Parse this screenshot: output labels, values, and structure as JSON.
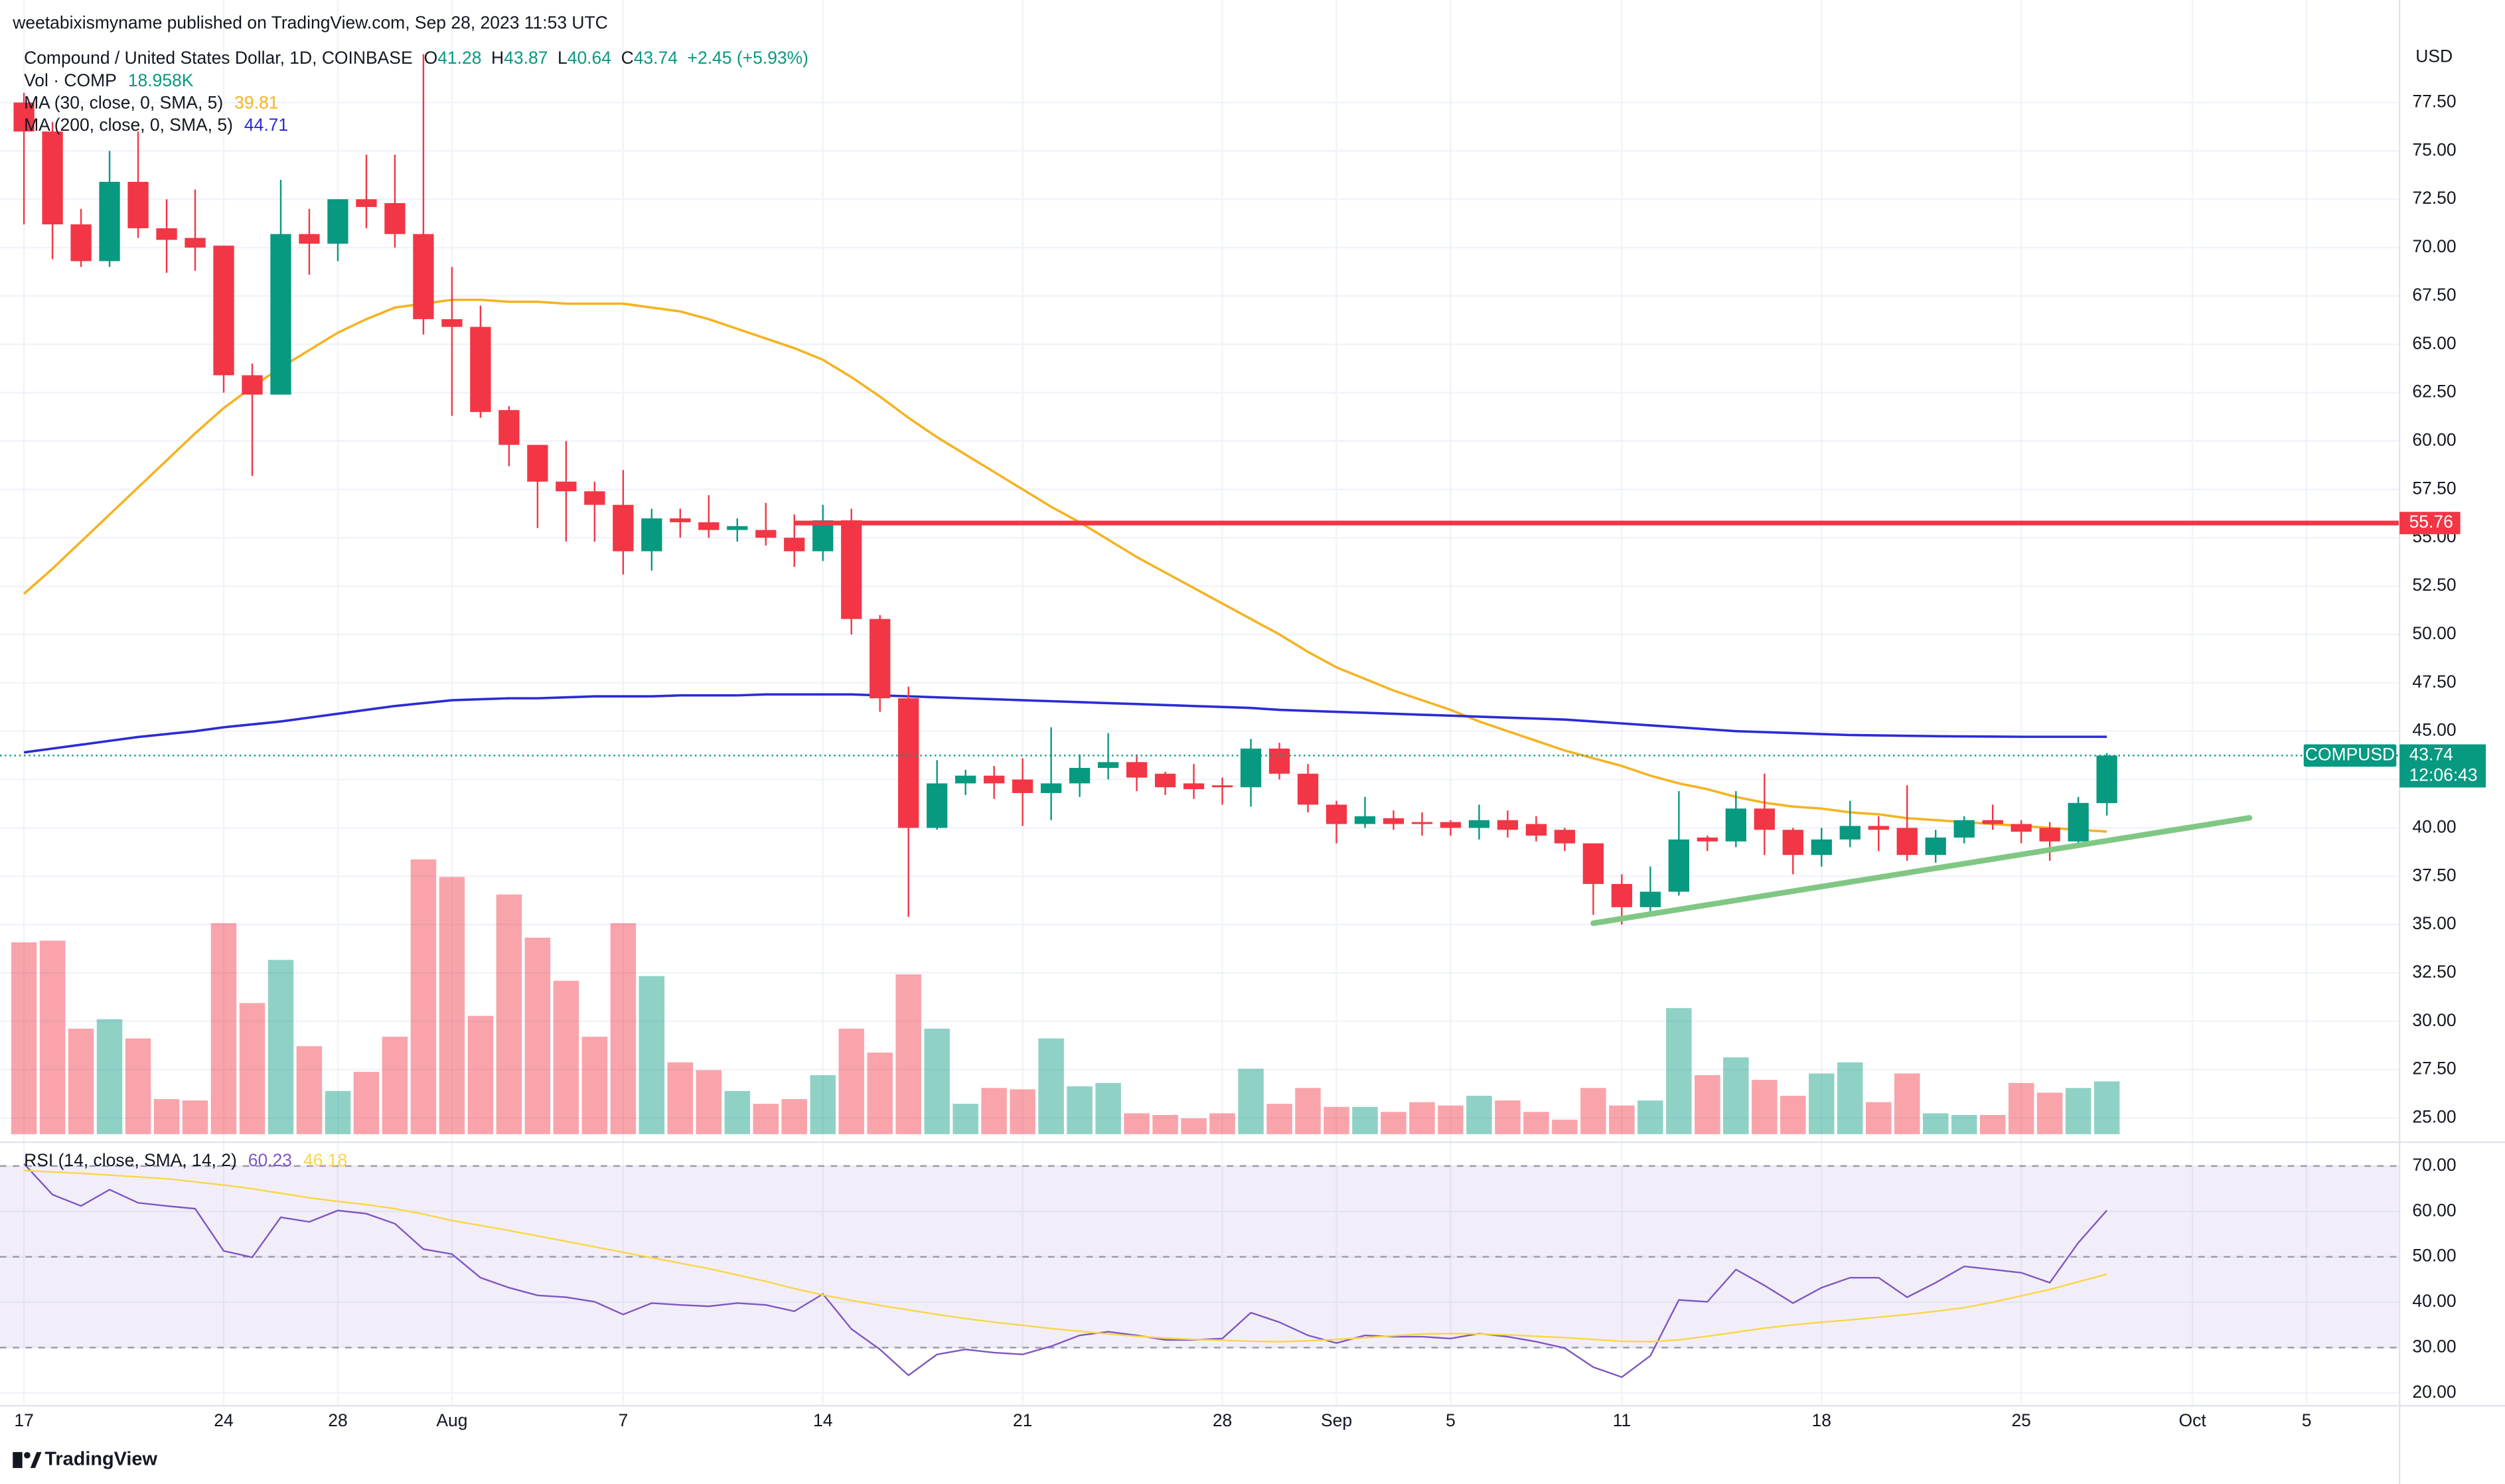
{
  "chart_data": {
    "type": "candlestick",
    "published": "weetabixismyname published on TradingView.com, Sep 28, 2023 11:53 UTC",
    "title": "Compound / United States Dollar, 1D, COINBASE",
    "ohlc_labels": [
      "O",
      "H",
      "L",
      "C"
    ],
    "change": "+2.45 (+5.93%)",
    "currency": "USD",
    "symbol": "COMPUSD",
    "countdown": "12:06:43",
    "footer": "TradingView",
    "up_color": "#089981",
    "down_color": "#f23645",
    "x": [
      "2023-07-17",
      "2023-07-18",
      "2023-07-19",
      "2023-07-20",
      "2023-07-21",
      "2023-07-22",
      "2023-07-23",
      "2023-07-24",
      "2023-07-25",
      "2023-07-26",
      "2023-07-27",
      "2023-07-28",
      "2023-07-29",
      "2023-07-30",
      "2023-07-31",
      "2023-08-01",
      "2023-08-02",
      "2023-08-03",
      "2023-08-04",
      "2023-08-05",
      "2023-08-06",
      "2023-08-07",
      "2023-08-08",
      "2023-08-09",
      "2023-08-10",
      "2023-08-11",
      "2023-08-12",
      "2023-08-13",
      "2023-08-14",
      "2023-08-15",
      "2023-08-16",
      "2023-08-17",
      "2023-08-18",
      "2023-08-19",
      "2023-08-20",
      "2023-08-21",
      "2023-08-22",
      "2023-08-23",
      "2023-08-24",
      "2023-08-25",
      "2023-08-26",
      "2023-08-27",
      "2023-08-28",
      "2023-08-29",
      "2023-08-30",
      "2023-08-31",
      "2023-09-01",
      "2023-09-02",
      "2023-09-03",
      "2023-09-04",
      "2023-09-05",
      "2023-09-06",
      "2023-09-07",
      "2023-09-08",
      "2023-09-09",
      "2023-09-10",
      "2023-09-11",
      "2023-09-12",
      "2023-09-13",
      "2023-09-14",
      "2023-09-15",
      "2023-09-16",
      "2023-09-17",
      "2023-09-18",
      "2023-09-19",
      "2023-09-20",
      "2023-09-21",
      "2023-09-22",
      "2023-09-23",
      "2023-09-24",
      "2023-09-25",
      "2023-09-26",
      "2023-09-27",
      "2023-09-28"
    ],
    "open": [
      77.5,
      76.0,
      71.2,
      69.3,
      73.4,
      71.0,
      70.5,
      70.1,
      63.4,
      62.4,
      70.7,
      70.2,
      72.5,
      72.3,
      70.7,
      66.3,
      65.9,
      61.6,
      59.8,
      57.9,
      57.4,
      56.7,
      54.3,
      56.0,
      55.8,
      55.4,
      55.4,
      55.0,
      54.3,
      55.9,
      50.8,
      46.7,
      40.0,
      42.3,
      42.7,
      42.5,
      41.8,
      42.3,
      43.1,
      43.4,
      42.8,
      42.3,
      42.2,
      42.1,
      44.1,
      42.8,
      41.2,
      40.2,
      40.5,
      40.3,
      40.3,
      40.0,
      40.4,
      40.2,
      39.9,
      39.2,
      37.1,
      35.9,
      36.7,
      39.5,
      39.3,
      41.0,
      39.9,
      38.6,
      39.4,
      40.1,
      40.0,
      38.6,
      39.5,
      40.4,
      40.2,
      40.0,
      39.3,
      41.28
    ],
    "high": [
      78.0,
      76.5,
      72.0,
      75.0,
      76.0,
      72.5,
      73.0,
      70.1,
      64.0,
      73.5,
      72.0,
      72.5,
      74.8,
      74.8,
      80.0,
      69.0,
      67.0,
      61.8,
      59.8,
      60.0,
      57.9,
      58.5,
      56.5,
      56.5,
      57.2,
      56.0,
      56.8,
      56.2,
      56.7,
      56.5,
      51.0,
      47.3,
      43.5,
      43.0,
      43.2,
      43.6,
      45.2,
      43.8,
      44.9,
      43.8,
      42.9,
      43.3,
      42.6,
      44.6,
      44.4,
      43.3,
      41.4,
      41.6,
      40.9,
      40.8,
      40.4,
      41.2,
      40.9,
      40.6,
      40.0,
      39.2,
      37.6,
      38.0,
      41.9,
      39.6,
      41.9,
      42.8,
      40.0,
      40.0,
      41.4,
      40.6,
      42.2,
      39.9,
      40.6,
      41.2,
      40.4,
      40.3,
      41.6,
      43.87
    ],
    "low": [
      71.2,
      69.4,
      69.0,
      69.0,
      70.5,
      68.7,
      68.8,
      62.5,
      58.2,
      62.4,
      68.6,
      69.3,
      71.0,
      70.0,
      65.5,
      61.3,
      61.2,
      58.7,
      55.5,
      54.8,
      54.8,
      53.1,
      53.3,
      55.0,
      55.0,
      54.8,
      54.6,
      53.5,
      53.8,
      50.0,
      46.0,
      35.4,
      39.9,
      41.7,
      41.5,
      40.1,
      40.4,
      41.6,
      42.5,
      41.9,
      41.7,
      41.5,
      41.2,
      41.1,
      42.5,
      40.8,
      39.2,
      40.0,
      39.9,
      39.6,
      39.6,
      39.4,
      39.5,
      39.3,
      38.8,
      35.5,
      35.0,
      35.6,
      36.5,
      38.8,
      39.0,
      38.6,
      37.6,
      38.0,
      39.0,
      38.8,
      38.3,
      38.2,
      39.2,
      39.9,
      39.2,
      38.3,
      39.1,
      40.64
    ],
    "close": [
      76.0,
      71.2,
      69.3,
      73.4,
      71.0,
      70.4,
      70.0,
      63.4,
      62.4,
      70.7,
      70.2,
      72.5,
      72.1,
      70.7,
      66.3,
      65.9,
      61.5,
      59.8,
      57.9,
      57.4,
      56.7,
      54.3,
      56.0,
      55.8,
      55.4,
      55.6,
      55.0,
      54.3,
      55.9,
      50.8,
      46.7,
      40.0,
      42.3,
      42.7,
      42.3,
      41.8,
      42.3,
      43.1,
      43.4,
      42.6,
      42.1,
      42.0,
      42.1,
      44.1,
      42.8,
      41.2,
      40.2,
      40.6,
      40.2,
      40.2,
      40.0,
      40.4,
      39.9,
      39.6,
      39.2,
      37.1,
      35.9,
      36.7,
      39.4,
      39.3,
      41.0,
      39.9,
      38.6,
      39.4,
      40.1,
      39.9,
      38.6,
      39.5,
      40.4,
      40.2,
      39.8,
      39.3,
      41.29,
      43.74
    ],
    "ylim": [
      24.0,
      82.8
    ],
    "yticks": [
      {
        "value": 25,
        "label": "25.00"
      },
      {
        "value": 27.5,
        "label": "27.50"
      },
      {
        "value": 30,
        "label": "30.00"
      },
      {
        "value": 32.5,
        "label": "32.50"
      },
      {
        "value": 35,
        "label": "35.00"
      },
      {
        "value": 37.5,
        "label": "37.50"
      },
      {
        "value": 40,
        "label": "40.00"
      },
      {
        "value": 42.5,
        "label": "42.50"
      },
      {
        "value": 45,
        "label": "45.00"
      },
      {
        "value": 47.5,
        "label": "47.50"
      },
      {
        "value": 50,
        "label": "50.00"
      },
      {
        "value": 52.5,
        "label": "52.50"
      },
      {
        "value": 55,
        "label": "55.00"
      },
      {
        "value": 57.5,
        "label": "57.50"
      },
      {
        "value": 60,
        "label": "60.00"
      },
      {
        "value": 62.5,
        "label": "62.50"
      },
      {
        "value": 65,
        "label": "65.00"
      },
      {
        "value": 67.5,
        "label": "67.50"
      },
      {
        "value": 70,
        "label": "70.00"
      },
      {
        "value": 72.5,
        "label": "72.50"
      },
      {
        "value": 75,
        "label": "75.00"
      },
      {
        "value": 77.5,
        "label": "77.50"
      }
    ],
    "xticks": [
      {
        "value": "2023-07-17",
        "label": "17"
      },
      {
        "value": "2023-07-24",
        "label": "24"
      },
      {
        "value": "2023-07-28",
        "label": "28"
      },
      {
        "value": "2023-08-01",
        "label": "Aug"
      },
      {
        "value": "2023-08-07",
        "label": "7"
      },
      {
        "value": "2023-08-14",
        "label": "14"
      },
      {
        "value": "2023-08-21",
        "label": "21"
      },
      {
        "value": "2023-08-28",
        "label": "28"
      },
      {
        "value": "2023-09-01",
        "label": "Sep"
      },
      {
        "value": "2023-09-05",
        "label": "5"
      },
      {
        "value": "2023-09-11",
        "label": "11"
      },
      {
        "value": "2023-09-18",
        "label": "18"
      },
      {
        "value": "2023-09-25",
        "label": "25"
      },
      {
        "value": "2023-10-01",
        "label": "Oct"
      },
      {
        "value": "2023-10-05",
        "label": "5"
      }
    ],
    "grid": true,
    "volume": {
      "name": "Vol · COMP",
      "value_label": "18.958K",
      "values": [
        68900,
        69500,
        37900,
        41300,
        34400,
        12600,
        12100,
        75800,
        47100,
        62600,
        31600,
        15500,
        22400,
        35000,
        98700,
        92400,
        42500,
        86100,
        70600,
        55100,
        35000,
        75800,
        56800,
        25800,
        23000,
        15500,
        10900,
        12600,
        21200,
        37900,
        29300,
        57400,
        37900,
        10900,
        16600,
        16100,
        34400,
        17200,
        18400,
        7500,
        6900,
        5700,
        7500,
        23500,
        10900,
        16600,
        9800,
        9800,
        8000,
        11500,
        10300,
        13800,
        12100,
        8000,
        5200,
        16600,
        10300,
        12100,
        45300,
        21200,
        27600,
        19500,
        13800,
        21800,
        25800,
        11500,
        21800,
        7500,
        6900,
        6900,
        18400,
        14900,
        16600,
        18958
      ]
    },
    "series": [
      {
        "name": "MA (30, close, 0, SMA, 5)",
        "color": "#f5b323",
        "values": [
          52.1,
          53.4,
          54.8,
          56.2,
          57.6,
          59.0,
          60.4,
          61.7,
          62.8,
          63.8,
          64.7,
          65.6,
          66.3,
          66.9,
          67.1,
          67.3,
          67.3,
          67.2,
          67.2,
          67.1,
          67.1,
          67.1,
          66.9,
          66.7,
          66.3,
          65.8,
          65.3,
          64.8,
          64.2,
          63.3,
          62.3,
          61.2,
          60.2,
          59.3,
          58.4,
          57.5,
          56.6,
          55.8,
          54.9,
          54.0,
          53.2,
          52.4,
          51.6,
          50.8,
          50.0,
          49.1,
          48.3,
          47.7,
          47.1,
          46.6,
          46.1,
          45.5,
          45.0,
          44.5,
          44.0,
          43.6,
          43.2,
          42.7,
          42.3,
          42.0,
          41.6,
          41.3,
          41.1,
          41.0,
          40.8,
          40.7,
          40.5,
          40.4,
          40.3,
          40.2,
          40.1,
          40.0,
          39.9,
          39.81
        ]
      },
      {
        "name": "MA (200, close, 0, SMA, 5)",
        "color": "#2b2bd6",
        "values": [
          43.9,
          44.1,
          44.3,
          44.5,
          44.7,
          44.85,
          45.0,
          45.2,
          45.35,
          45.5,
          45.7,
          45.9,
          46.1,
          46.3,
          46.45,
          46.6,
          46.65,
          46.7,
          46.7,
          46.75,
          46.8,
          46.8,
          46.8,
          46.85,
          46.85,
          46.85,
          46.9,
          46.9,
          46.9,
          46.9,
          46.85,
          46.8,
          46.75,
          46.7,
          46.65,
          46.6,
          46.55,
          46.5,
          46.45,
          46.4,
          46.35,
          46.3,
          46.25,
          46.2,
          46.1,
          46.05,
          46.0,
          45.95,
          45.9,
          45.85,
          45.8,
          45.75,
          45.7,
          45.65,
          45.6,
          45.5,
          45.4,
          45.3,
          45.2,
          45.1,
          45.0,
          44.95,
          44.9,
          44.85,
          44.8,
          44.78,
          44.76,
          44.74,
          44.73,
          44.72,
          44.71,
          44.71,
          44.71,
          44.71
        ]
      }
    ],
    "rsi": {
      "name": "RSI (14, close, SMA, 14, 2)",
      "color": "#7e57c2",
      "values": [
        70.5,
        63.7,
        61.2,
        64.8,
        61.9,
        61.2,
        60.6,
        51.3,
        49.9,
        58.7,
        57.7,
        60.2,
        59.5,
        57.3,
        51.7,
        50.6,
        45.4,
        43.2,
        41.5,
        41.1,
        40.1,
        37.3,
        39.8,
        39.4,
        39.1,
        39.8,
        39.4,
        38.0,
        41.8,
        34.1,
        29.6,
        23.9,
        28.5,
        29.6,
        28.9,
        28.5,
        30.3,
        32.7,
        33.5,
        32.7,
        31.7,
        31.7,
        32.0,
        37.7,
        35.6,
        32.7,
        31.0,
        32.7,
        32.4,
        32.4,
        32.0,
        33.1,
        32.4,
        31.3,
        29.9,
        25.7,
        23.5,
        28.2,
        40.5,
        40.1,
        47.2,
        43.7,
        39.8,
        43.2,
        45.4,
        45.4,
        41.1,
        44.3,
        47.9,
        47.2,
        46.5,
        44.3,
        53.1,
        60.23
      ],
      "sma": {
        "color": "#f9d648",
        "values": [
          69.0,
          68.7,
          68.4,
          68.0,
          67.6,
          67.2,
          66.5,
          65.8,
          65.0,
          64.0,
          63.0,
          62.2,
          61.5,
          60.6,
          59.4,
          58.0,
          56.9,
          55.8,
          54.6,
          53.4,
          52.2,
          51.0,
          49.8,
          48.6,
          47.4,
          46.0,
          44.6,
          43.0,
          41.6,
          40.4,
          39.3,
          38.3,
          37.3,
          36.4,
          35.6,
          34.9,
          34.2,
          33.6,
          33.0,
          32.5,
          32.1,
          31.8,
          31.6,
          31.4,
          31.3,
          31.5,
          31.8,
          32.2,
          32.6,
          33.0,
          33.1,
          33.0,
          32.8,
          32.5,
          32.2,
          31.8,
          31.4,
          31.3,
          31.7,
          32.5,
          33.4,
          34.3,
          35.0,
          35.6,
          36.1,
          36.7,
          37.3,
          38.0,
          38.8,
          40.0,
          41.4,
          42.8,
          44.5,
          46.18
        ]
      },
      "bands": {
        "upper": 70,
        "middle": 50,
        "lower": 30,
        "fill": "#7e57c2"
      },
      "ylim": [
        17.2,
        74.2
      ],
      "yticks": [
        {
          "value": 20,
          "label": "20.00"
        },
        {
          "value": 30,
          "label": "30.00"
        },
        {
          "value": 40,
          "label": "40.00"
        },
        {
          "value": 50,
          "label": "50.00"
        },
        {
          "value": 60,
          "label": "60.00"
        },
        {
          "value": 70,
          "label": "70.00"
        }
      ]
    },
    "annotations": {
      "resistance": {
        "value": 55.76,
        "x_start": "2023-08-13",
        "color": "#f23645"
      },
      "trendline": {
        "x": [
          "2023-09-10",
          "2023-10-03"
        ],
        "y": [
          35.07,
          40.52
        ],
        "color": "#81c784"
      }
    }
  }
}
